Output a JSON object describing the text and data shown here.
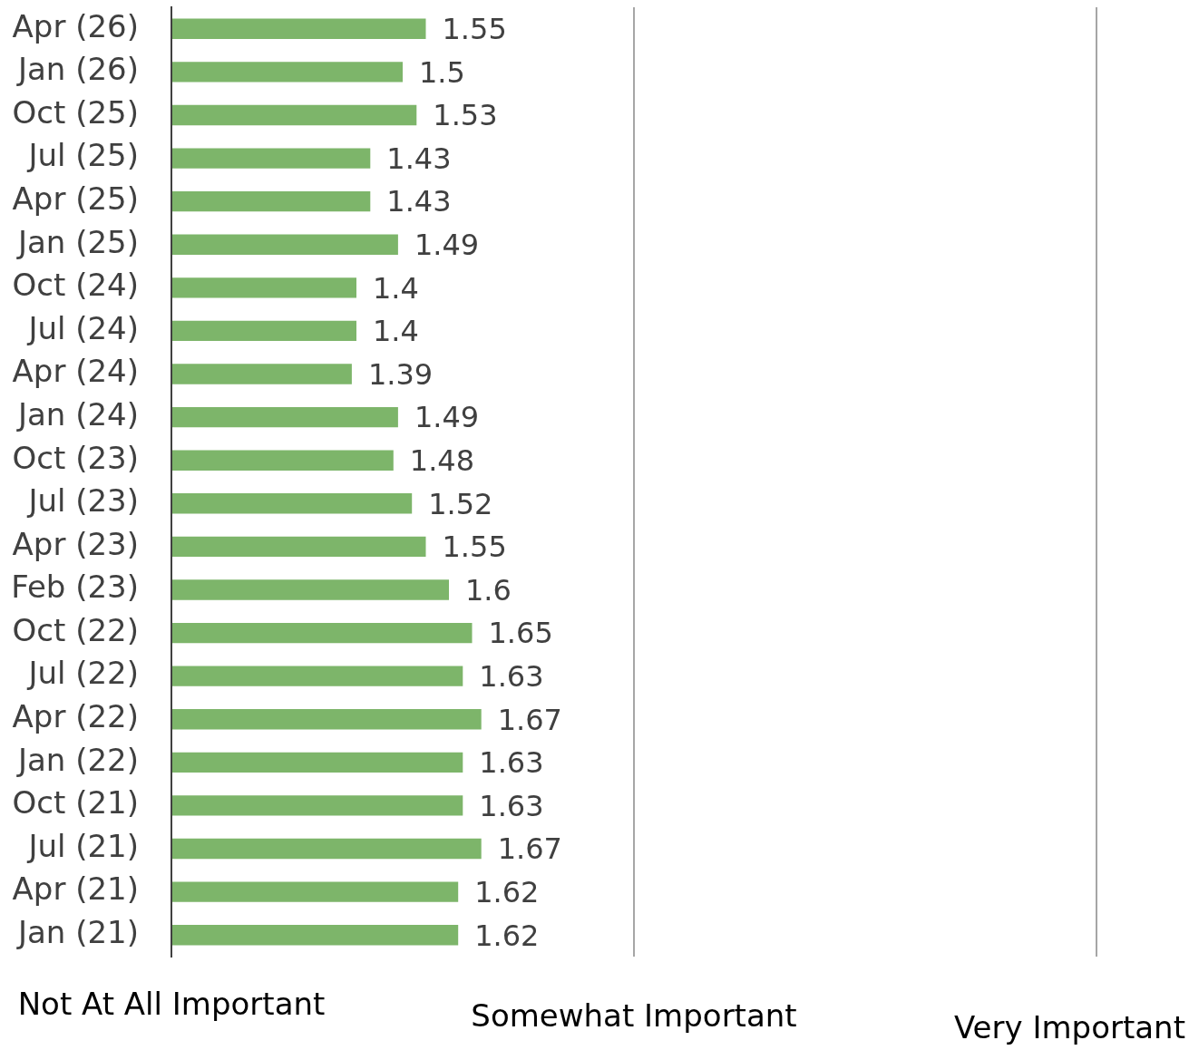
{
  "chart_data": {
    "type": "bar",
    "orientation": "horizontal",
    "categories": [
      "Apr (26)",
      "Jan (26)",
      "Oct (25)",
      "Jul (25)",
      "Apr (25)",
      "Jan (25)",
      "Oct (24)",
      "Jul (24)",
      "Apr (24)",
      "Jan (24)",
      "Oct (23)",
      "Jul (23)",
      "Apr (23)",
      "Feb (23)",
      "Oct (22)",
      "Jul (22)",
      "Apr (22)",
      "Jan (22)",
      "Oct (21)",
      "Jul (21)",
      "Apr (21)",
      "Jan (21)"
    ],
    "values": [
      1.55,
      1.5,
      1.53,
      1.43,
      1.43,
      1.49,
      1.4,
      1.4,
      1.39,
      1.49,
      1.48,
      1.52,
      1.55,
      1.6,
      1.65,
      1.63,
      1.67,
      1.63,
      1.63,
      1.67,
      1.62,
      1.62
    ],
    "color": "#7db56a",
    "xlim": [
      1,
      3
    ],
    "annotations": [
      "Not At All Important"
    ],
    "ref_lines": [
      {
        "axis": "x",
        "value": 2,
        "label": "Somewhat Important",
        "color": "#a6a6a6"
      },
      {
        "axis": "x",
        "value": 3,
        "label": "Very Important",
        "color": "#a6a6a6"
      }
    ],
    "tick_labels": "y",
    "data_labels": true
  }
}
